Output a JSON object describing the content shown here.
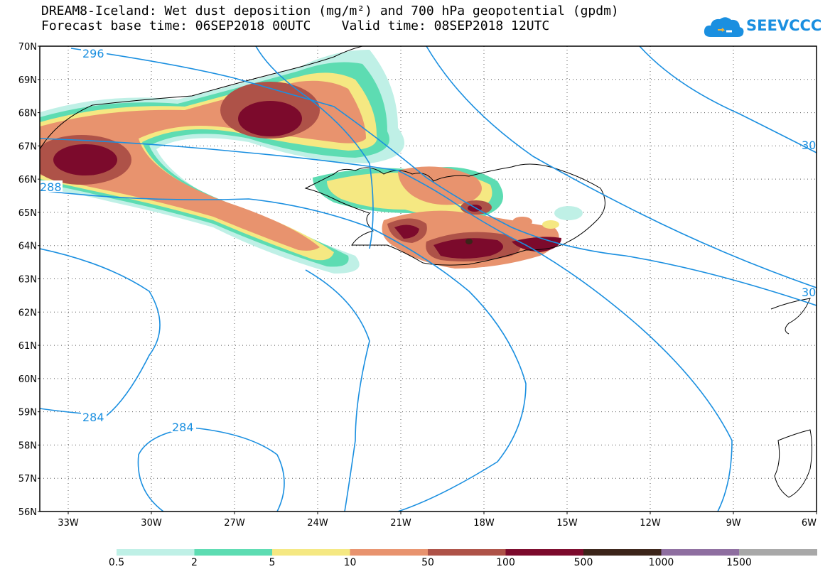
{
  "header": {
    "title_line1": "DREAM8-Iceland: Wet dust deposition (mg/m²) and 700 hPa geopotential (gpdm)",
    "title_line2": "Forecast base time: 06SEP2018 00UTC    Valid time: 08SEP2018 12UTC",
    "logo_text": "SEEVCCC",
    "logo_icon": "cloud-logo-icon"
  },
  "map": {
    "lat_labels": [
      "70N",
      "69N",
      "68N",
      "67N",
      "66N",
      "65N",
      "64N",
      "63N",
      "62N",
      "61N",
      "60N",
      "59N",
      "58N",
      "57N",
      "56N"
    ],
    "lon_labels": [
      "33W",
      "30W",
      "27W",
      "24W",
      "21W",
      "18W",
      "15W",
      "12W",
      "9W",
      "6W"
    ],
    "contour_labels": [
      "296",
      "288",
      "284",
      "284",
      "30",
      "30",
      "30"
    ]
  },
  "colorbar": {
    "labels": [
      "0.5",
      "2",
      "5",
      "10",
      "50",
      "100",
      "500",
      "1000",
      "1500"
    ],
    "colors": [
      "#bff0e6",
      "#5ddcb2",
      "#f5e882",
      "#e8936e",
      "#ae5248",
      "#7c0a2c",
      "#3b2419",
      "#8e6ea0",
      "#a8a8a8"
    ]
  }
}
